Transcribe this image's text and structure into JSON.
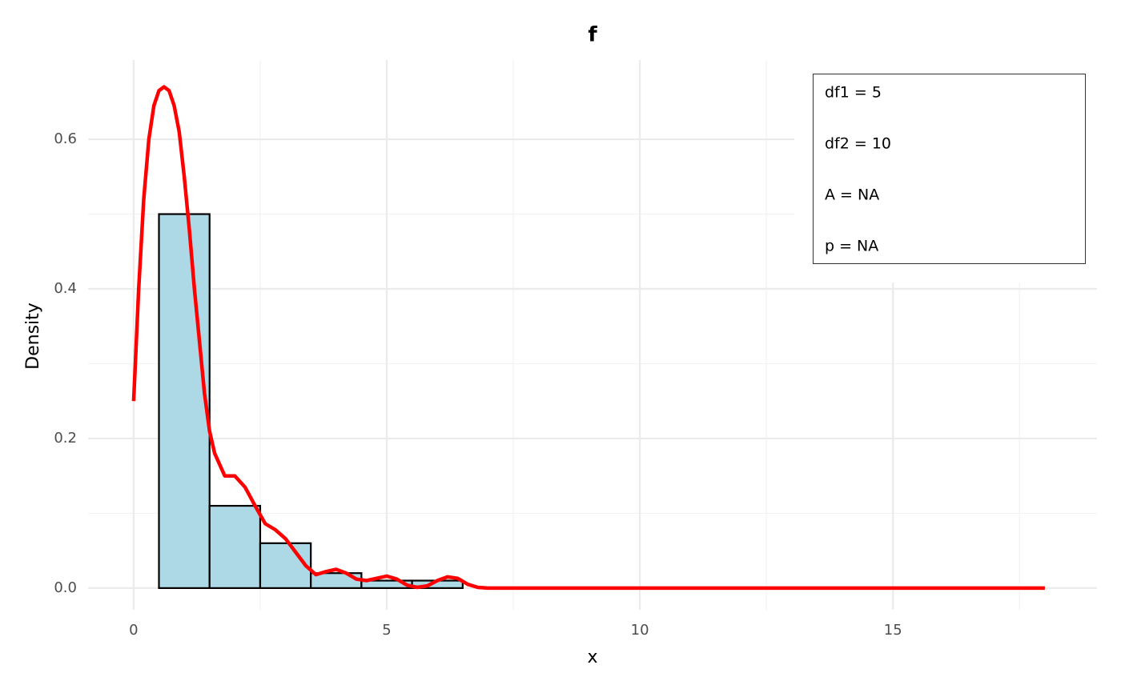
{
  "chart_data": {
    "type": "histogram",
    "title": "f",
    "x_label": "x",
    "y_label": "Density",
    "xlim": [
      -0.9,
      19.03
    ],
    "ylim": [
      -0.029,
      0.706
    ],
    "xticks": [
      0,
      5,
      10,
      15
    ],
    "yticks": [
      {
        "value": 0,
        "label": "0.0"
      },
      {
        "value": 0.2,
        "label": "0.2"
      },
      {
        "value": 0.4,
        "label": "0.4"
      },
      {
        "value": 0.6,
        "label": "0.6"
      }
    ],
    "xminor": [
      2.5,
      7.5,
      12.5,
      17.5
    ],
    "yminor": [
      0.1,
      0.3,
      0.5
    ],
    "grid": true,
    "histogram": {
      "bins": [
        0.5,
        1.5,
        2.5,
        3.5,
        4.5,
        5.5,
        6.5
      ],
      "values": [
        0.5,
        0.11,
        0.06,
        0.02,
        0.01,
        0.01
      ],
      "color": "#add8e6",
      "edgecolor": "#000000"
    },
    "density": {
      "color": "#ff0000",
      "x": [
        0,
        0.1,
        0.2,
        0.3,
        0.4,
        0.5,
        0.6,
        0.7,
        0.8,
        0.9,
        1.0,
        1.1,
        1.2,
        1.3,
        1.4,
        1.5,
        1.6,
        1.8,
        2.0,
        2.2,
        2.4,
        2.6,
        2.8,
        3.0,
        3.2,
        3.4,
        3.6,
        3.8,
        4.0,
        4.2,
        4.4,
        4.6,
        4.8,
        5.0,
        5.2,
        5.4,
        5.6,
        5.8,
        6.0,
        6.2,
        6.4,
        6.6,
        6.8,
        7.0,
        8,
        10,
        12,
        14,
        16,
        18
      ],
      "values": [
        0.25,
        0.4,
        0.52,
        0.6,
        0.645,
        0.665,
        0.67,
        0.665,
        0.645,
        0.61,
        0.55,
        0.48,
        0.4,
        0.33,
        0.26,
        0.21,
        0.18,
        0.15,
        0.15,
        0.135,
        0.11,
        0.086,
        0.078,
        0.066,
        0.048,
        0.03,
        0.018,
        0.022,
        0.025,
        0.02,
        0.012,
        0.01,
        0.013,
        0.016,
        0.012,
        0.004,
        0.001,
        0.003,
        0.01,
        0.015,
        0.013,
        0.005,
        0.001,
        0,
        0,
        0,
        0,
        0,
        0,
        0
      ]
    },
    "annotations": [
      "df1 = 5",
      "df2 = 10",
      "A = NA",
      "p = NA"
    ]
  }
}
